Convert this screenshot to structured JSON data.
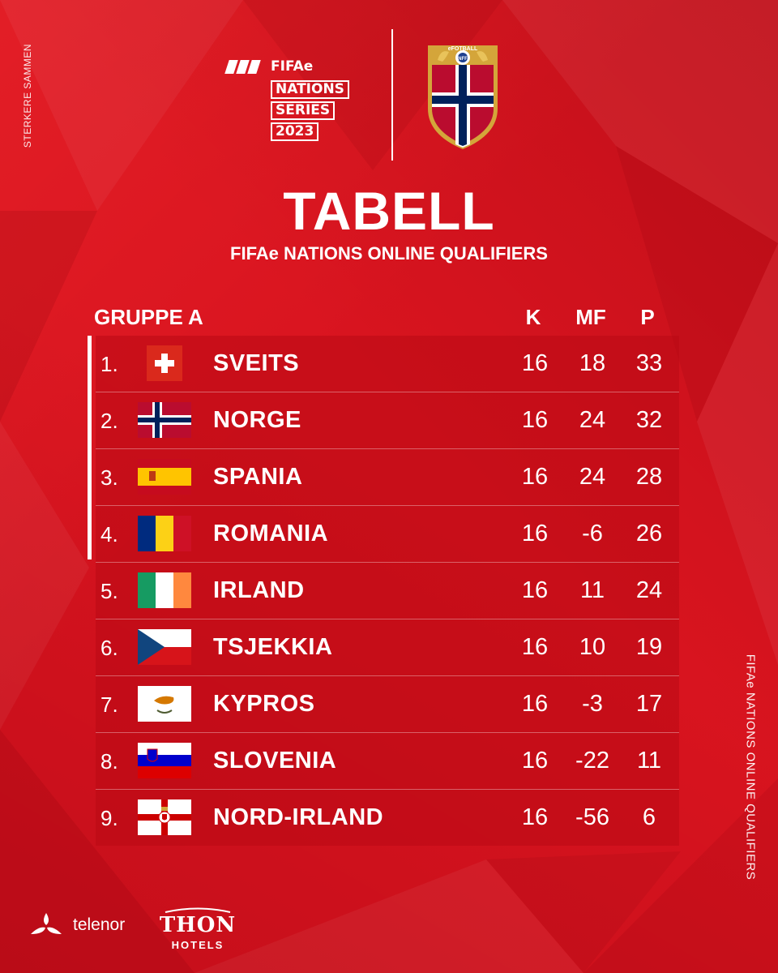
{
  "side_text_left": "STERKERE SAMMEN",
  "side_text_right": "FIFAe NATIONS ONLINE QUALIFIERS",
  "logo": {
    "line1": "FIFAe",
    "line2": "NATIONS",
    "line3": "SERIES",
    "line4": "2023",
    "crest_text": "eFOTBALL",
    "crest_monogram": "NFF"
  },
  "title": "TABELL",
  "subtitle": "FIFAe NATIONS ONLINE QUALIFIERS",
  "table": {
    "group": "GRUPPE A",
    "columns": [
      "K",
      "MF",
      "P"
    ],
    "rows": [
      {
        "rank": "1.",
        "team": "SVEITS",
        "flag": "switzerland-flag",
        "k": "16",
        "mf": "18",
        "p": "33"
      },
      {
        "rank": "2.",
        "team": "NORGE",
        "flag": "norway-flag",
        "k": "16",
        "mf": "24",
        "p": "32"
      },
      {
        "rank": "3.",
        "team": "SPANIA",
        "flag": "spain-flag",
        "k": "16",
        "mf": "24",
        "p": "28"
      },
      {
        "rank": "4.",
        "team": "ROMANIA",
        "flag": "romania-flag",
        "k": "16",
        "mf": "-6",
        "p": "26"
      },
      {
        "rank": "5.",
        "team": "IRLAND",
        "flag": "ireland-flag",
        "k": "16",
        "mf": "11",
        "p": "24"
      },
      {
        "rank": "6.",
        "team": "TSJEKKIA",
        "flag": "czechia-flag",
        "k": "16",
        "mf": "10",
        "p": "19"
      },
      {
        "rank": "7.",
        "team": "KYPROS",
        "flag": "cyprus-flag",
        "k": "16",
        "mf": "-3",
        "p": "17"
      },
      {
        "rank": "8.",
        "team": "SLOVENIA",
        "flag": "slovenia-flag",
        "k": "16",
        "mf": "-22",
        "p": "11"
      },
      {
        "rank": "9.",
        "team": "NORD-IRLAND",
        "flag": "northern-ireland-flag",
        "k": "16",
        "mf": "-56",
        "p": "6"
      }
    ]
  },
  "sponsors": {
    "telenor": "telenor",
    "thon_top": "THON",
    "thon_bottom": "HOTELS"
  },
  "colors": {
    "background": "#d9141f",
    "row_background": "#b90a14",
    "text": "#ffffff"
  }
}
